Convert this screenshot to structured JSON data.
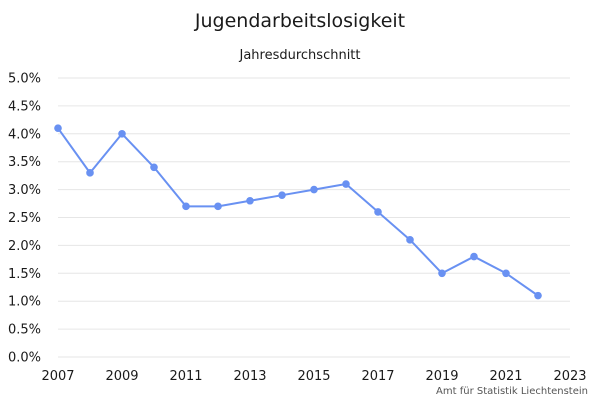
{
  "chart_data": {
    "type": "line",
    "title": "Jugendarbeitslosigkeit",
    "subtitle": "Jahresdurchschnitt",
    "xlabel": "",
    "ylabel": "",
    "x": [
      2007,
      2008,
      2009,
      2010,
      2011,
      2012,
      2013,
      2014,
      2015,
      2016,
      2017,
      2018,
      2019,
      2020,
      2021,
      2022
    ],
    "series": [
      {
        "values": [
          4.1,
          3.3,
          4.0,
          3.4,
          2.7,
          2.7,
          2.8,
          2.9,
          3.0,
          3.1,
          2.6,
          2.1,
          1.5,
          1.8,
          1.5,
          1.1
        ],
        "color": "#6991f2"
      }
    ],
    "ylim": [
      0,
      5
    ],
    "yticks": [
      "0.0%",
      "0.5%",
      "1.0%",
      "1.5%",
      "2.0%",
      "2.5%",
      "3.0%",
      "3.5%",
      "4.0%",
      "4.5%",
      "5.0%"
    ],
    "xlim": [
      2007,
      2023
    ],
    "xticks": [
      "2007",
      "2009",
      "2011",
      "2013",
      "2015",
      "2017",
      "2019",
      "2021",
      "2023"
    ],
    "grid": true,
    "legend": "none",
    "gridline_color": "#e6e6e6",
    "credit": "Amt für Statistik Liechtenstein"
  }
}
